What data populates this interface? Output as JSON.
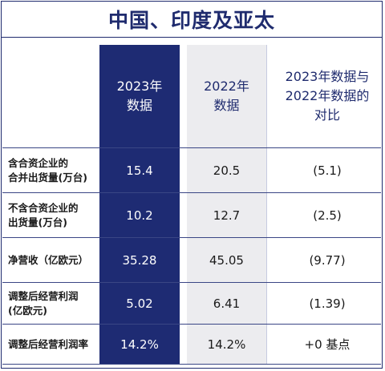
{
  "title": "中国、印度及亚太",
  "headers": {
    "col1": [
      "2023年",
      "数据"
    ],
    "col2": [
      "2022年",
      "数据"
    ],
    "col3": [
      "2023年数据与",
      "2022年数据的",
      "对比"
    ]
  },
  "rows": [
    {
      "label": [
        "含合资企业的",
        "合并出货量(万台)"
      ],
      "v2023": "15.4",
      "v2022": "20.5",
      "diff": "(5.1)"
    },
    {
      "label": [
        "不含合资企业的",
        "出货量(万台)"
      ],
      "v2023": "10.2",
      "v2022": "12.7",
      "diff": "(2.5)"
    },
    {
      "label": [
        "净营收（亿欧元）"
      ],
      "v2023": "35.28",
      "v2022": "45.05",
      "diff": "(9.77)"
    },
    {
      "label": [
        "调整后经营利润",
        "(亿欧元)"
      ],
      "v2023": "5.02",
      "v2022": "6.41",
      "diff": "(1.39)"
    },
    {
      "label": [
        "调整后经营利润率"
      ],
      "v2023": "14.2%",
      "v2022": "14.2%",
      "diff": "+0 基点"
    }
  ],
  "colors": {
    "navy": "#1e2b73",
    "grey": "#ececef"
  }
}
